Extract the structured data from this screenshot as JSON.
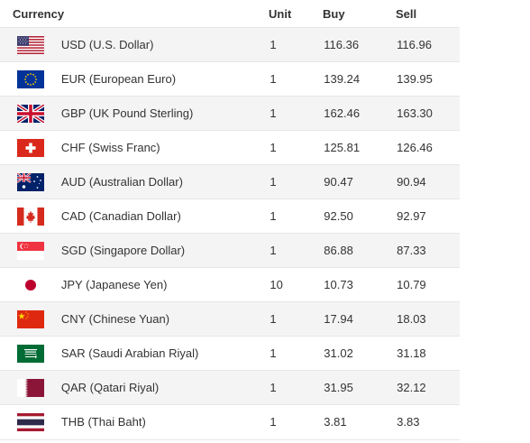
{
  "table": {
    "headers": {
      "currency": "Currency",
      "unit": "Unit",
      "buy": "Buy",
      "sell": "Sell"
    },
    "rows": [
      {
        "code": "usd",
        "name": "USD (U.S. Dollar)",
        "unit": "1",
        "buy": "116.36",
        "sell": "116.96",
        "flag_icon": "us-flag-icon"
      },
      {
        "code": "eur",
        "name": "EUR (European Euro)",
        "unit": "1",
        "buy": "139.24",
        "sell": "139.95",
        "flag_icon": "eu-flag-icon"
      },
      {
        "code": "gbp",
        "name": "GBP (UK Pound Sterling)",
        "unit": "1",
        "buy": "162.46",
        "sell": "163.30",
        "flag_icon": "uk-flag-icon"
      },
      {
        "code": "chf",
        "name": "CHF (Swiss Franc)",
        "unit": "1",
        "buy": "125.81",
        "sell": "126.46",
        "flag_icon": "swiss-flag-icon"
      },
      {
        "code": "aud",
        "name": "AUD (Australian Dollar)",
        "unit": "1",
        "buy": "90.47",
        "sell": "90.94",
        "flag_icon": "australia-flag-icon"
      },
      {
        "code": "cad",
        "name": "CAD (Canadian Dollar)",
        "unit": "1",
        "buy": "92.50",
        "sell": "92.97",
        "flag_icon": "canada-flag-icon"
      },
      {
        "code": "sgd",
        "name": "SGD (Singapore Dollar)",
        "unit": "1",
        "buy": "86.88",
        "sell": "87.33",
        "flag_icon": "singapore-flag-icon"
      },
      {
        "code": "jpy",
        "name": "JPY (Japanese Yen)",
        "unit": "10",
        "buy": "10.73",
        "sell": "10.79",
        "flag_icon": "japan-flag-icon"
      },
      {
        "code": "cny",
        "name": "CNY (Chinese Yuan)",
        "unit": "1",
        "buy": "17.94",
        "sell": "18.03",
        "flag_icon": "china-flag-icon"
      },
      {
        "code": "sar",
        "name": "SAR (Saudi Arabian Riyal)",
        "unit": "1",
        "buy": "31.02",
        "sell": "31.18",
        "flag_icon": "saudi-flag-icon"
      },
      {
        "code": "qar",
        "name": "QAR (Qatari Riyal)",
        "unit": "1",
        "buy": "31.95",
        "sell": "32.12",
        "flag_icon": "qatar-flag-icon"
      },
      {
        "code": "thb",
        "name": "THB (Thai Baht)",
        "unit": "1",
        "buy": "3.81",
        "sell": "3.83",
        "flag_icon": "thailand-flag-icon"
      }
    ]
  }
}
